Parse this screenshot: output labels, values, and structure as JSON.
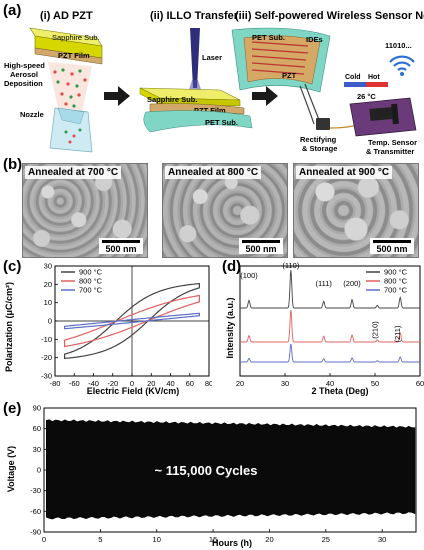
{
  "panel_labels": {
    "a": "(a)",
    "b": "(b)",
    "c": "(c)",
    "d": "(d)",
    "e": "(e)"
  },
  "panel_a": {
    "step1_title": "(i) AD PZT",
    "step2_title": "(ii) ILLO Transfer",
    "step3_title": "(iii) Self-powered Wireless Sensor Node",
    "sapphire_label": "Sapphire Sub.",
    "pzt_film_label": "PZT Film",
    "deposition_label_1": "High-speed",
    "deposition_label_2": "Aerosol",
    "deposition_label_3": "Deposition",
    "nozzle_label": "Nozzle",
    "laser_label": "Laser",
    "sapphire_label_2": "Sapphire Sub.",
    "pzt_film_label_2": "PZT Film",
    "pet_label_2": "PET Sub.",
    "pet_label_3": "PET Sub.",
    "ides_label": "IDEs",
    "pzt_label_3": "PZT",
    "rectifying_1": "Rectifying",
    "rectifying_2": "& Storage",
    "cold_label": "Cold",
    "hot_label": "Hot",
    "temp_reading": "26 °C",
    "signal_text": "11010...",
    "sensor_label_1": "Temp. Sensor",
    "sensor_label_2": "& Transmitter"
  },
  "panel_b": [
    {
      "title": "Annealed at 700 °C",
      "scale": "500 nm"
    },
    {
      "title": "Annealed at 800 °C",
      "scale": "500 nm"
    },
    {
      "title": "Annealed at 900 °C",
      "scale": "500 nm"
    }
  ],
  "chart_data": [
    {
      "type": "line",
      "panel": "c",
      "xlabel": "Electric Field (KV/cm)",
      "ylabel": "Polarization (μC/cm²)",
      "xlim": [
        -80,
        80
      ],
      "ylim": [
        -30,
        30
      ],
      "xticks": [
        "-80",
        "-60",
        "-40",
        "-20",
        "0",
        "20",
        "40",
        "60",
        "80"
      ],
      "yticks": [
        "-30",
        "-20",
        "-10",
        "0",
        "10",
        "20",
        "30"
      ],
      "legend_position": "top-left",
      "series": [
        {
          "name": "900 °C",
          "color": "#444444",
          "xmax": 70,
          "pmax": 21,
          "pr": 13.5
        },
        {
          "name": "800 °C",
          "color": "#e06060",
          "xmax": 70,
          "pmax": 17,
          "pr": 6.5
        },
        {
          "name": "700 °C",
          "color": "#5b6fc4",
          "xmax": 70,
          "pmax": 8,
          "pr": 1.5
        }
      ]
    },
    {
      "type": "line",
      "panel": "d",
      "xlabel": "2 Theta (Deg)",
      "ylabel": "Intensity (a.u.)",
      "xlim": [
        20,
        60
      ],
      "xticks": [
        "20",
        "30",
        "40",
        "50",
        "60"
      ],
      "legend_position": "top-right",
      "peaks": [
        {
          "x": 22.0,
          "h": 0.2,
          "label": "(100)"
        },
        {
          "x": 31.3,
          "h": 1.0,
          "label": "(110)"
        },
        {
          "x": 38.6,
          "h": 0.18,
          "label": "(111)"
        },
        {
          "x": 44.9,
          "h": 0.22,
          "label": "(200)"
        },
        {
          "x": 50.5,
          "h": 0.07,
          "label": "(210)"
        },
        {
          "x": 55.6,
          "h": 0.28,
          "label": "(211)"
        }
      ],
      "series": [
        {
          "name": "900 °C",
          "color": "#444444",
          "scale": 1.0
        },
        {
          "name": "800 °C",
          "color": "#e06060",
          "scale": 0.85
        },
        {
          "name": "700 °C",
          "color": "#5b6fc4",
          "scale": 0.55
        }
      ]
    },
    {
      "type": "area",
      "panel": "e",
      "xlabel": "Hours (h)",
      "ylabel": "Voltage (V)",
      "xlim": [
        0,
        33
      ],
      "ylim": [
        -90,
        90
      ],
      "xticks": [
        "0",
        "5",
        "10",
        "15",
        "20",
        "25",
        "30"
      ],
      "yticks": [
        "-90",
        "-60",
        "-30",
        "0",
        "30",
        "60",
        "90"
      ],
      "annotation": "~ 115,000 Cycles",
      "upper_start": 72,
      "upper_end": 62,
      "lower_start": -70,
      "lower_end": -62
    }
  ]
}
